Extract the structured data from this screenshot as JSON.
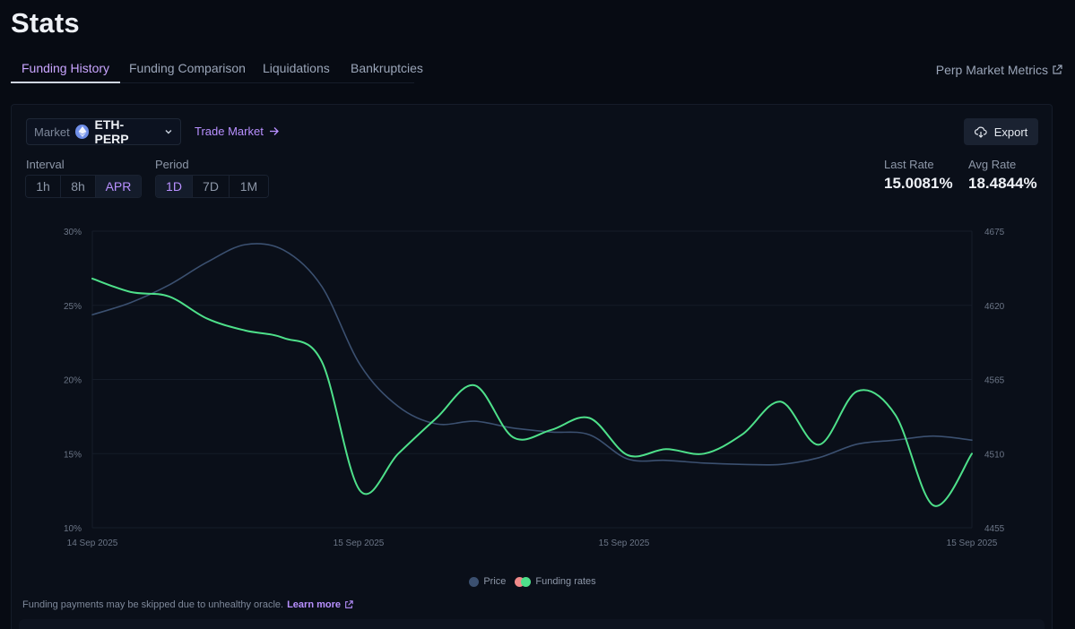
{
  "page": {
    "title": "Stats"
  },
  "tabs": [
    {
      "label": "Funding History",
      "active": true
    },
    {
      "label": "Funding Comparison",
      "active": false
    },
    {
      "label": "Liquidations",
      "active": false
    },
    {
      "label": "Bankruptcies",
      "active": false
    }
  ],
  "header_link": {
    "label": "Perp Market Metrics",
    "icon": "external-link-icon"
  },
  "controls": {
    "market_label": "Market",
    "market_value": "ETH-PERP",
    "market_icon": "ethereum-icon",
    "trade_market": "Trade Market",
    "export": "Export",
    "interval_label": "Interval",
    "interval_options": [
      {
        "label": "1h",
        "active": false
      },
      {
        "label": "8h",
        "active": false
      },
      {
        "label": "APR",
        "active": true
      }
    ],
    "period_label": "Period",
    "period_options": [
      {
        "label": "1D",
        "active": true
      },
      {
        "label": "7D",
        "active": false
      },
      {
        "label": "1M",
        "active": false
      }
    ]
  },
  "rates": {
    "last_label": "Last Rate",
    "last_value": "15.0081%",
    "avg_label": "Avg Rate",
    "avg_value": "18.4844%"
  },
  "chart_data": {
    "type": "line",
    "x_labels": [
      "14 Sep 2025",
      "15 Sep 2025",
      "15 Sep 2025",
      "15 Sep 2025"
    ],
    "left_axis": {
      "ticks": [
        "30%",
        "25%",
        "20%",
        "15%",
        "10%"
      ],
      "min": 10,
      "max": 30
    },
    "right_axis": {
      "ticks": [
        "4675",
        "4620",
        "4565",
        "4510",
        "4455"
      ],
      "min": 4455,
      "max": 4675
    },
    "series": [
      {
        "name": "Price",
        "axis": "right",
        "color": "#3b5070",
        "values": [
          4613,
          4622,
          4635,
          4652,
          4665,
          4661,
          4634,
          4576,
          4545,
          4532,
          4534,
          4529,
          4526,
          4524,
          4506,
          4505,
          4503,
          4502,
          4502,
          4507,
          4517,
          4520,
          4523,
          4520
        ]
      },
      {
        "name": "Funding rates",
        "axis": "left",
        "color": "#4ee08a",
        "values": [
          26.8,
          25.9,
          25.6,
          24.1,
          23.3,
          22.8,
          21.2,
          12.5,
          15.0,
          17.4,
          19.6,
          16.1,
          16.6,
          17.4,
          14.9,
          15.3,
          15.0,
          16.3,
          18.5,
          15.6,
          19.2,
          17.6,
          11.5,
          15.0
        ]
      }
    ]
  },
  "legend": {
    "price": "Price",
    "funding": "Funding rates",
    "funding_colors": [
      "#f08a8a",
      "#4ee08a"
    ]
  },
  "footnote": {
    "text": "Funding payments may be skipped due to unhealthy oracle.",
    "link": "Learn more"
  }
}
